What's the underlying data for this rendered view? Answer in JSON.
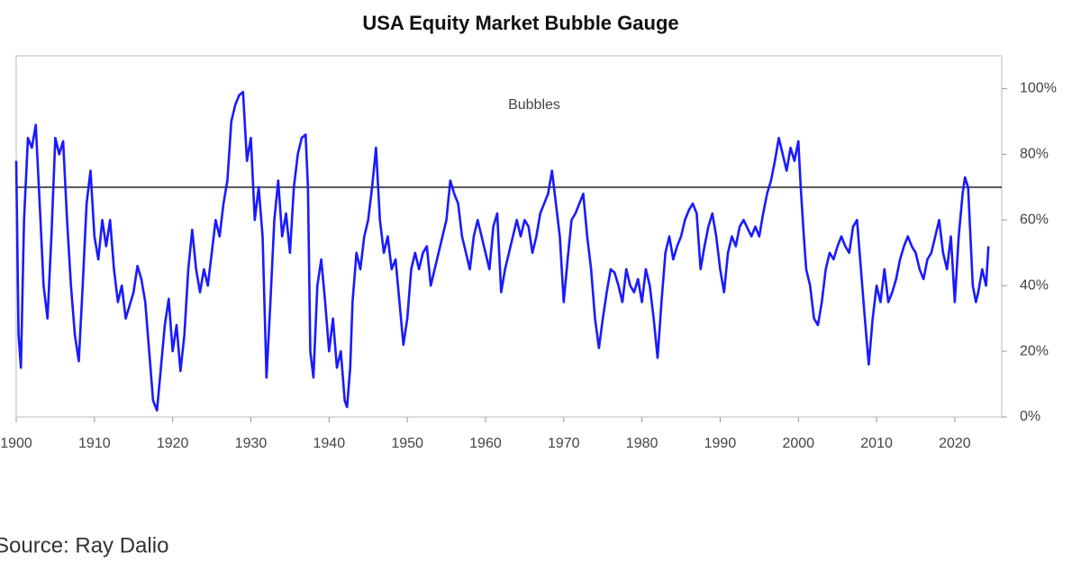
{
  "chart_data": {
    "type": "line",
    "title": "USA Equity Market Bubble Gauge",
    "annotation": "Bubbles",
    "x": [
      1900,
      1900.3,
      1900.6,
      1901,
      1901.5,
      1902,
      1902.5,
      1903,
      1903.5,
      1904,
      1904.5,
      1905,
      1905.5,
      1906,
      1906.5,
      1907,
      1907.5,
      1908,
      1908.5,
      1909,
      1909.5,
      1910,
      1910.5,
      1911,
      1911.5,
      1912,
      1912.5,
      1913,
      1913.5,
      1914,
      1915,
      1915.5,
      1916,
      1916.5,
      1917,
      1917.5,
      1918,
      1918.5,
      1919,
      1919.5,
      1920,
      1920.5,
      1921,
      1921.5,
      1922,
      1922.5,
      1923,
      1923.5,
      1924,
      1924.5,
      1925,
      1925.5,
      1926,
      1926.5,
      1927,
      1927.5,
      1928,
      1928.5,
      1929,
      1929.5,
      1930,
      1930.5,
      1931,
      1931.5,
      1932,
      1932.5,
      1933,
      1933.5,
      1934,
      1934.5,
      1935,
      1935.5,
      1936,
      1936.5,
      1937,
      1937.3,
      1937.6,
      1938,
      1938.5,
      1939,
      1939.5,
      1940,
      1940.5,
      1941,
      1941.5,
      1942,
      1942.3,
      1942.7,
      1943,
      1943.5,
      1944,
      1944.5,
      1945,
      1945.5,
      1946,
      1946.5,
      1947,
      1947.5,
      1948,
      1948.5,
      1949,
      1949.5,
      1950,
      1950.5,
      1951,
      1951.5,
      1952,
      1952.5,
      1953,
      1953.5,
      1954,
      1955,
      1955.5,
      1956,
      1956.5,
      1957,
      1957.5,
      1958,
      1958.5,
      1959,
      1959.5,
      1960,
      1960.5,
      1961,
      1961.5,
      1962,
      1962.5,
      1963,
      1963.5,
      1964,
      1964.5,
      1965,
      1965.5,
      1966,
      1966.5,
      1967,
      1967.5,
      1968,
      1968.5,
      1969,
      1969.5,
      1970,
      1970.5,
      1971,
      1971.5,
      1972,
      1972.5,
      1973,
      1973.5,
      1974,
      1974.5,
      1975,
      1975.5,
      1976,
      1976.5,
      1977,
      1977.5,
      1978,
      1978.5,
      1979,
      1979.5,
      1980,
      1980.5,
      1981,
      1981.5,
      1982,
      1982.5,
      1983,
      1983.5,
      1984,
      1984.5,
      1985,
      1985.5,
      1986,
      1986.5,
      1987,
      1987.5,
      1988,
      1988.5,
      1989,
      1989.5,
      1990,
      1990.5,
      1991,
      1991.5,
      1992,
      1992.5,
      1993,
      1994,
      1994.5,
      1995,
      1995.5,
      1996,
      1996.5,
      1997,
      1997.5,
      1998,
      1998.5,
      1999,
      1999.5,
      2000,
      2000.3,
      2000.7,
      2001,
      2001.5,
      2002,
      2002.5,
      2003,
      2003.5,
      2004,
      2004.5,
      2005,
      2005.5,
      2006,
      2006.5,
      2007,
      2007.5,
      2008,
      2008.5,
      2009,
      2009.5,
      2010,
      2010.5,
      2011,
      2011.5,
      2012,
      2012.5,
      2013,
      2013.5,
      2014,
      2014.5,
      2015,
      2015.5,
      2016,
      2016.5,
      2017,
      2017.5,
      2018,
      2018.5,
      2019,
      2019.5,
      2020,
      2020.5,
      2021,
      2021.3,
      2021.7,
      2022,
      2022.3,
      2022.7,
      2023,
      2023.5,
      2024,
      2024.3
    ],
    "series": [
      {
        "color": "#1a1aff",
        "values": [
          78,
          25,
          15,
          60,
          85,
          82,
          89,
          65,
          40,
          30,
          55,
          85,
          80,
          84,
          60,
          40,
          25,
          17,
          40,
          65,
          75,
          55,
          48,
          60,
          52,
          60,
          45,
          35,
          40,
          30,
          38,
          46,
          42,
          35,
          20,
          5,
          2,
          15,
          28,
          36,
          20,
          28,
          14,
          25,
          45,
          57,
          45,
          38,
          45,
          40,
          50,
          60,
          55,
          65,
          72,
          90,
          95,
          98,
          99,
          78,
          85,
          60,
          70,
          55,
          12,
          35,
          60,
          72,
          55,
          62,
          50,
          70,
          80,
          85,
          86,
          70,
          20,
          12,
          40,
          48,
          35,
          20,
          30,
          15,
          20,
          5,
          3,
          15,
          35,
          50,
          45,
          55,
          60,
          70,
          82,
          60,
          50,
          55,
          45,
          48,
          35,
          22,
          30,
          45,
          50,
          45,
          50,
          52,
          40,
          45,
          50,
          60,
          72,
          68,
          65,
          55,
          50,
          45,
          55,
          60,
          55,
          50,
          45,
          58,
          62,
          38,
          45,
          50,
          55,
          60,
          55,
          60,
          58,
          50,
          55,
          62,
          65,
          68,
          75,
          65,
          55,
          35,
          48,
          60,
          62,
          65,
          68,
          55,
          45,
          30,
          21,
          30,
          38,
          45,
          44,
          40,
          35,
          45,
          40,
          38,
          42,
          35,
          45,
          40,
          30,
          18,
          35,
          50,
          55,
          48,
          52,
          55,
          60,
          63,
          65,
          62,
          45,
          52,
          58,
          62,
          55,
          45,
          38,
          50,
          55,
          52,
          58,
          60,
          55,
          58,
          55,
          62,
          68,
          72,
          78,
          85,
          80,
          75,
          82,
          78,
          84,
          70,
          55,
          45,
          40,
          30,
          28,
          35,
          45,
          50,
          48,
          52,
          55,
          52,
          50,
          58,
          60,
          45,
          30,
          16,
          30,
          40,
          35,
          45,
          35,
          38,
          42,
          48,
          52,
          55,
          52,
          50,
          45,
          42,
          48,
          50,
          55,
          60,
          50,
          45,
          55,
          35,
          55,
          68,
          73,
          70,
          55,
          40,
          35,
          38,
          45,
          40,
          52
        ]
      }
    ],
    "reference_line": 70,
    "xlim": [
      1900,
      2026
    ],
    "xticks": [
      1900,
      1910,
      1920,
      1930,
      1940,
      1950,
      1960,
      1970,
      1980,
      1990,
      2000,
      2010,
      2020
    ],
    "ylim": [
      0,
      110
    ],
    "yticks": [
      {
        "value": 0,
        "label": "0%"
      },
      {
        "value": 20,
        "label": "20%"
      },
      {
        "value": 40,
        "label": "40%"
      },
      {
        "value": 60,
        "label": "60%"
      },
      {
        "value": 80,
        "label": "80%"
      },
      {
        "value": 100,
        "label": "100%"
      }
    ]
  },
  "source": "Source: Ray Dalio"
}
